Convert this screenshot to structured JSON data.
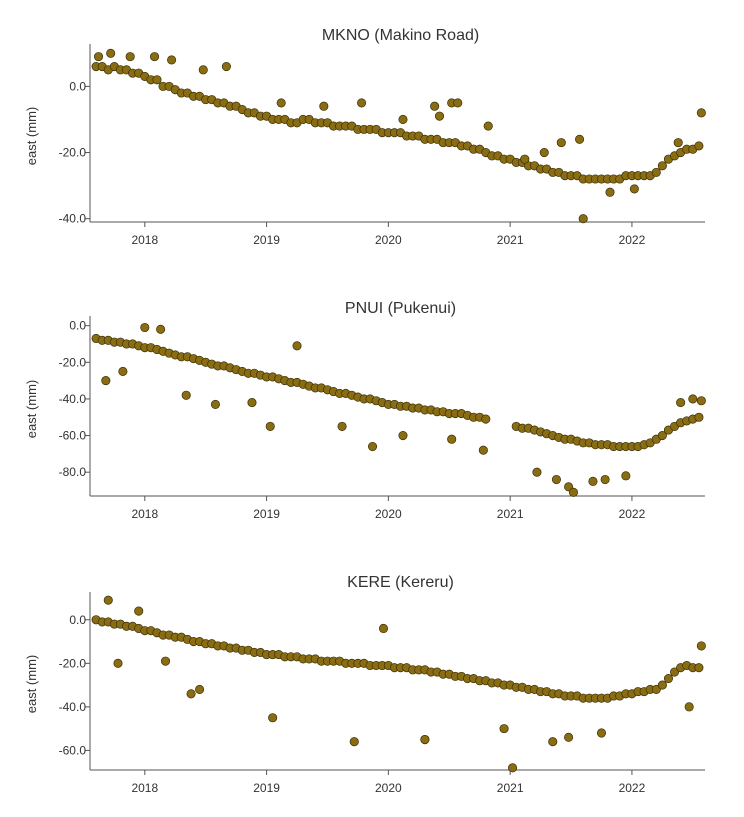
{
  "colors": {
    "point_fill": "#8a6d12",
    "point_stroke": "#3a3008",
    "axis": "#555555",
    "text": "#333333"
  },
  "chart_data": [
    {
      "type": "scatter",
      "title": "MKNO (Makino Road)",
      "ylabel": "east (mm)",
      "xlabel": "",
      "xlim": [
        2017.55,
        2022.6
      ],
      "ylim": [
        -41,
        11
      ],
      "xticks": [
        "2018",
        "2019",
        "2020",
        "2021",
        "2022"
      ],
      "yticks": [
        "0.0",
        "-20.0",
        "-40.0"
      ],
      "grid": false,
      "series": [
        {
          "x": [
            2017.6,
            2017.65,
            2017.7,
            2017.75,
            2017.8,
            2017.85,
            2017.9,
            2017.95,
            2018.0,
            2018.05,
            2018.1,
            2018.15,
            2018.2,
            2018.25,
            2018.3,
            2018.35,
            2018.4,
            2018.45,
            2018.5,
            2018.55,
            2018.6,
            2018.65,
            2018.7,
            2018.75,
            2018.8,
            2018.85,
            2018.9,
            2018.95,
            2019.0,
            2019.05,
            2019.1,
            2019.15,
            2019.2,
            2019.25,
            2019.3,
            2019.35,
            2019.4,
            2019.45,
            2019.5,
            2019.55,
            2019.6,
            2019.65,
            2019.7,
            2019.75,
            2019.8,
            2019.85,
            2019.9,
            2019.95,
            2020.0,
            2020.05,
            2020.1,
            2020.15,
            2020.2,
            2020.25,
            2020.3,
            2020.35,
            2020.4,
            2020.45,
            2020.5,
            2020.55,
            2020.6,
            2020.65,
            2020.7,
            2020.75,
            2020.8,
            2020.85,
            2020.9,
            2020.95,
            2021.0,
            2021.05,
            2021.1,
            2021.15,
            2021.2,
            2021.25,
            2021.3,
            2021.35,
            2021.4,
            2021.45,
            2021.5,
            2021.55,
            2021.6,
            2021.65,
            2021.7,
            2021.75,
            2021.8,
            2021.85,
            2021.9,
            2021.95,
            2022.0,
            2022.05,
            2022.1,
            2022.15,
            2022.2,
            2022.25,
            2022.3,
            2022.35,
            2022.4,
            2022.45,
            2022.5,
            2022.55,
            2017.62,
            2017.72,
            2017.88,
            2018.08,
            2018.22,
            2018.48,
            2018.67,
            2019.12,
            2019.47,
            2019.78,
            2020.12,
            2020.38,
            2020.42,
            2020.52,
            2020.57,
            2020.82,
            2021.12,
            2021.28,
            2021.42,
            2021.57,
            2021.6,
            2021.82,
            2022.02,
            2022.38,
            2022.57
          ],
          "y": [
            6,
            6,
            5,
            6,
            5,
            5,
            4,
            4,
            3,
            2,
            2,
            0,
            0,
            -1,
            -2,
            -2,
            -3,
            -3,
            -4,
            -4,
            -5,
            -5,
            -6,
            -6,
            -7,
            -8,
            -8,
            -9,
            -9,
            -10,
            -10,
            -10,
            -11,
            -11,
            -10,
            -10,
            -11,
            -11,
            -11,
            -12,
            -12,
            -12,
            -12,
            -13,
            -13,
            -13,
            -13,
            -14,
            -14,
            -14,
            -14,
            -15,
            -15,
            -15,
            -16,
            -16,
            -16,
            -17,
            -17,
            -17,
            -18,
            -18,
            -19,
            -19,
            -20,
            -21,
            -21,
            -22,
            -22,
            -23,
            -23,
            -24,
            -24,
            -25,
            -25,
            -26,
            -26,
            -27,
            -27,
            -27,
            -28,
            -28,
            -28,
            -28,
            -28,
            -28,
            -28,
            -27,
            -27,
            -27,
            -27,
            -27,
            -26,
            -24,
            -22,
            -21,
            -20,
            -19,
            -19,
            -18,
            9,
            10,
            9,
            9,
            8,
            5,
            6,
            -5,
            -6,
            -5,
            -10,
            -6,
            -9,
            -5,
            -5,
            -12,
            -22,
            -20,
            -17,
            -16,
            -40,
            -32,
            -31,
            -17,
            -8
          ]
        }
      ]
    },
    {
      "type": "scatter",
      "title": "PNUI (Pukenui)",
      "ylabel": "east (mm)",
      "xlabel": "",
      "xlim": [
        2017.55,
        2022.6
      ],
      "ylim": [
        -93,
        2
      ],
      "xticks": [
        "2018",
        "2019",
        "2020",
        "2021",
        "2022"
      ],
      "yticks": [
        "0.0",
        "-20.0",
        "-40.0",
        "-60.0",
        "-80.0"
      ],
      "grid": false,
      "series": [
        {
          "x": [
            2017.6,
            2017.65,
            2017.7,
            2017.75,
            2017.8,
            2017.85,
            2017.9,
            2017.95,
            2018.0,
            2018.05,
            2018.1,
            2018.15,
            2018.2,
            2018.25,
            2018.3,
            2018.35,
            2018.4,
            2018.45,
            2018.5,
            2018.55,
            2018.6,
            2018.65,
            2018.7,
            2018.75,
            2018.8,
            2018.85,
            2018.9,
            2018.95,
            2019.0,
            2019.05,
            2019.1,
            2019.15,
            2019.2,
            2019.25,
            2019.3,
            2019.35,
            2019.4,
            2019.45,
            2019.5,
            2019.55,
            2019.6,
            2019.65,
            2019.7,
            2019.75,
            2019.8,
            2019.85,
            2019.9,
            2019.95,
            2020.0,
            2020.05,
            2020.1,
            2020.15,
            2020.2,
            2020.25,
            2020.3,
            2020.35,
            2020.4,
            2020.45,
            2020.5,
            2020.55,
            2020.6,
            2020.65,
            2020.7,
            2020.75,
            2020.8,
            2021.05,
            2021.1,
            2021.15,
            2021.2,
            2021.25,
            2021.3,
            2021.35,
            2021.4,
            2021.45,
            2021.5,
            2021.55,
            2021.6,
            2021.65,
            2021.7,
            2021.75,
            2021.8,
            2021.85,
            2021.9,
            2021.95,
            2022.0,
            2022.05,
            2022.1,
            2022.15,
            2022.2,
            2022.25,
            2022.3,
            2022.35,
            2022.4,
            2022.45,
            2022.5,
            2022.55,
            2017.68,
            2017.82,
            2018.0,
            2018.13,
            2018.34,
            2018.58,
            2018.88,
            2019.03,
            2019.25,
            2019.62,
            2019.87,
            2020.12,
            2020.52,
            2020.78,
            2021.22,
            2021.38,
            2021.48,
            2021.52,
            2021.68,
            2021.78,
            2021.95,
            2022.4,
            2022.5,
            2022.57
          ],
          "y": [
            -7,
            -8,
            -8,
            -9,
            -9,
            -10,
            -10,
            -11,
            -12,
            -12,
            -13,
            -14,
            -15,
            -16,
            -17,
            -17,
            -18,
            -19,
            -20,
            -21,
            -22,
            -22,
            -23,
            -24,
            -25,
            -26,
            -26,
            -27,
            -28,
            -28,
            -29,
            -30,
            -31,
            -31,
            -32,
            -33,
            -34,
            -34,
            -35,
            -36,
            -37,
            -37,
            -38,
            -39,
            -40,
            -40,
            -41,
            -42,
            -43,
            -43,
            -44,
            -44,
            -45,
            -45,
            -46,
            -46,
            -47,
            -47,
            -48,
            -48,
            -48,
            -49,
            -50,
            -50,
            -51,
            -55,
            -56,
            -56,
            -57,
            -58,
            -59,
            -60,
            -61,
            -62,
            -62,
            -63,
            -64,
            -64,
            -65,
            -65,
            -65,
            -66,
            -66,
            -66,
            -66,
            -66,
            -65,
            -64,
            -62,
            -60,
            -57,
            -55,
            -53,
            -52,
            -51,
            -50,
            -30,
            -25,
            -1,
            -2,
            -38,
            -43,
            -42,
            -55,
            -11,
            -55,
            -66,
            -60,
            -62,
            -68,
            -80,
            -84,
            -88,
            -91,
            -85,
            -84,
            -82,
            -42,
            -40,
            -41
          ]
        }
      ]
    },
    {
      "type": "scatter",
      "title": "KERE (Kereru)",
      "ylabel": "east (mm)",
      "xlabel": "",
      "xlim": [
        2017.55,
        2022.6
      ],
      "ylim": [
        -69,
        10
      ],
      "xticks": [
        "2018",
        "2019",
        "2020",
        "2021",
        "2022"
      ],
      "yticks": [
        "0.0",
        "-20.0",
        "-40.0",
        "-60.0"
      ],
      "grid": false,
      "series": [
        {
          "x": [
            2017.6,
            2017.65,
            2017.7,
            2017.75,
            2017.8,
            2017.85,
            2017.9,
            2017.95,
            2018.0,
            2018.05,
            2018.1,
            2018.15,
            2018.2,
            2018.25,
            2018.3,
            2018.35,
            2018.4,
            2018.45,
            2018.5,
            2018.55,
            2018.6,
            2018.65,
            2018.7,
            2018.75,
            2018.8,
            2018.85,
            2018.9,
            2018.95,
            2019.0,
            2019.05,
            2019.1,
            2019.15,
            2019.2,
            2019.25,
            2019.3,
            2019.35,
            2019.4,
            2019.45,
            2019.5,
            2019.55,
            2019.6,
            2019.65,
            2019.7,
            2019.75,
            2019.8,
            2019.85,
            2019.9,
            2019.95,
            2020.0,
            2020.05,
            2020.1,
            2020.15,
            2020.2,
            2020.25,
            2020.3,
            2020.35,
            2020.4,
            2020.45,
            2020.5,
            2020.55,
            2020.6,
            2020.65,
            2020.7,
            2020.75,
            2020.8,
            2020.85,
            2020.9,
            2020.95,
            2021.0,
            2021.05,
            2021.1,
            2021.15,
            2021.2,
            2021.25,
            2021.3,
            2021.35,
            2021.4,
            2021.45,
            2021.5,
            2021.55,
            2021.6,
            2021.65,
            2021.7,
            2021.75,
            2021.8,
            2021.85,
            2021.9,
            2021.95,
            2022.0,
            2022.05,
            2022.1,
            2022.15,
            2022.2,
            2022.25,
            2022.3,
            2022.35,
            2022.4,
            2022.45,
            2022.5,
            2022.55,
            2017.7,
            2017.78,
            2017.95,
            2018.17,
            2018.38,
            2018.45,
            2019.05,
            2019.72,
            2019.96,
            2020.3,
            2020.3,
            2020.95,
            2021.02,
            2021.35,
            2021.48,
            2021.75,
            2022.47,
            2022.57
          ],
          "y": [
            0,
            -1,
            -1,
            -2,
            -2,
            -3,
            -3,
            -4,
            -5,
            -5,
            -6,
            -7,
            -7,
            -8,
            -8,
            -9,
            -10,
            -10,
            -11,
            -11,
            -12,
            -12,
            -13,
            -13,
            -14,
            -14,
            -15,
            -15,
            -16,
            -16,
            -16,
            -17,
            -17,
            -17,
            -18,
            -18,
            -18,
            -19,
            -19,
            -19,
            -19,
            -20,
            -20,
            -20,
            -20,
            -21,
            -21,
            -21,
            -21,
            -22,
            -22,
            -22,
            -23,
            -23,
            -23,
            -24,
            -24,
            -25,
            -25,
            -26,
            -26,
            -27,
            -27,
            -28,
            -28,
            -29,
            -29,
            -30,
            -30,
            -31,
            -31,
            -32,
            -32,
            -33,
            -33,
            -34,
            -34,
            -35,
            -35,
            -35,
            -36,
            -36,
            -36,
            -36,
            -36,
            -35,
            -35,
            -34,
            -34,
            -33,
            -33,
            -32,
            -32,
            -30,
            -27,
            -24,
            -22,
            -21,
            -22,
            -22,
            9,
            -20,
            4,
            -19,
            -34,
            -32,
            -45,
            -56,
            -4,
            -55,
            -55,
            -50,
            -68,
            -56,
            -54,
            -52,
            -40,
            -12
          ]
        }
      ]
    }
  ]
}
